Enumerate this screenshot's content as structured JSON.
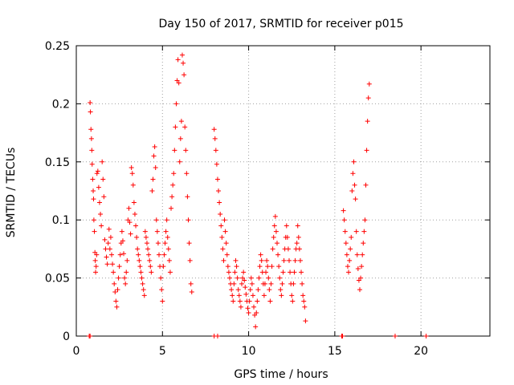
{
  "chart_data": {
    "type": "scatter",
    "title": "Day 150 of 2017, SRMTID for receiver p015",
    "xlabel": "GPS time / hours",
    "ylabel": "SRMTID / TECUs",
    "xlim": [
      0,
      24
    ],
    "ylim": [
      0,
      0.25
    ],
    "xticks": [
      0,
      5,
      10,
      15,
      20
    ],
    "xtick_labels": [
      "0",
      "5",
      "10",
      "15",
      "20"
    ],
    "yticks": [
      0,
      0.05,
      0.1,
      0.15,
      0.2,
      0.25
    ],
    "ytick_labels": [
      "0",
      "0.05",
      "0.1",
      "0.15",
      "0.2",
      "0.25"
    ],
    "grid": true,
    "marker": "plus",
    "color": "#ff0000",
    "series": [
      {
        "name": "SRMTID",
        "points": [
          [
            0.8,
            0.201
          ],
          [
            0.82,
            0.193
          ],
          [
            0.85,
            0.178
          ],
          [
            0.88,
            0.17
          ],
          [
            0.9,
            0.16
          ],
          [
            0.92,
            0.148
          ],
          [
            0.95,
            0.135
          ],
          [
            0.98,
            0.125
          ],
          [
            1.0,
            0.118
          ],
          [
            1.02,
            0.1
          ],
          [
            1.05,
            0.09
          ],
          [
            1.08,
            0.072
          ],
          [
            1.1,
            0.065
          ],
          [
            1.12,
            0.055
          ],
          [
            1.15,
            0.06
          ],
          [
            1.18,
            0.07
          ],
          [
            1.2,
            0.14
          ],
          [
            1.25,
            0.142
          ],
          [
            1.3,
            0.128
          ],
          [
            1.35,
            0.115
          ],
          [
            1.4,
            0.105
          ],
          [
            1.45,
            0.095
          ],
          [
            1.5,
            0.15
          ],
          [
            1.55,
            0.135
          ],
          [
            1.6,
            0.12
          ],
          [
            1.65,
            0.083
          ],
          [
            1.7,
            0.075
          ],
          [
            1.75,
            0.068
          ],
          [
            1.8,
            0.062
          ],
          [
            1.85,
            0.08
          ],
          [
            1.9,
            0.092
          ],
          [
            1.95,
            0.075
          ],
          [
            2.0,
            0.085
          ],
          [
            2.05,
            0.07
          ],
          [
            2.1,
            0.062
          ],
          [
            2.15,
            0.055
          ],
          [
            2.2,
            0.045
          ],
          [
            2.25,
            0.038
          ],
          [
            2.3,
            0.03
          ],
          [
            2.35,
            0.025
          ],
          [
            2.4,
            0.04
          ],
          [
            2.45,
            0.05
          ],
          [
            2.5,
            0.06
          ],
          [
            2.55,
            0.07
          ],
          [
            2.6,
            0.08
          ],
          [
            2.65,
            0.09
          ],
          [
            2.7,
            0.082
          ],
          [
            2.75,
            0.071
          ],
          [
            2.8,
            0.05
          ],
          [
            2.85,
            0.045
          ],
          [
            2.9,
            0.055
          ],
          [
            2.95,
            0.065
          ],
          [
            3.0,
            0.1
          ],
          [
            3.05,
            0.11
          ],
          [
            3.1,
            0.098
          ],
          [
            3.15,
            0.088
          ],
          [
            3.2,
            0.145
          ],
          [
            3.25,
            0.14
          ],
          [
            3.3,
            0.13
          ],
          [
            3.35,
            0.115
          ],
          [
            3.4,
            0.105
          ],
          [
            3.45,
            0.095
          ],
          [
            3.5,
            0.085
          ],
          [
            3.55,
            0.075
          ],
          [
            3.6,
            0.07
          ],
          [
            3.65,
            0.065
          ],
          [
            3.7,
            0.06
          ],
          [
            3.75,
            0.055
          ],
          [
            3.8,
            0.05
          ],
          [
            3.85,
            0.045
          ],
          [
            3.9,
            0.04
          ],
          [
            3.95,
            0.035
          ],
          [
            4.0,
            0.09
          ],
          [
            4.05,
            0.085
          ],
          [
            4.1,
            0.08
          ],
          [
            4.15,
            0.075
          ],
          [
            4.2,
            0.07
          ],
          [
            4.25,
            0.065
          ],
          [
            4.3,
            0.06
          ],
          [
            4.35,
            0.055
          ],
          [
            4.4,
            0.125
          ],
          [
            4.45,
            0.135
          ],
          [
            4.5,
            0.155
          ],
          [
            4.55,
            0.163
          ],
          [
            4.6,
            0.145
          ],
          [
            4.65,
            0.1
          ],
          [
            4.7,
            0.09
          ],
          [
            4.75,
            0.08
          ],
          [
            4.8,
            0.07
          ],
          [
            4.85,
            0.06
          ],
          [
            4.9,
            0.05
          ],
          [
            4.95,
            0.04
          ],
          [
            5.0,
            0.03
          ],
          [
            5.05,
            0.06
          ],
          [
            5.1,
            0.07
          ],
          [
            5.15,
            0.08
          ],
          [
            5.2,
            0.09
          ],
          [
            5.25,
            0.1
          ],
          [
            5.3,
            0.085
          ],
          [
            5.35,
            0.075
          ],
          [
            5.4,
            0.065
          ],
          [
            5.45,
            0.055
          ],
          [
            5.5,
            0.11
          ],
          [
            5.55,
            0.12
          ],
          [
            5.6,
            0.13
          ],
          [
            5.65,
            0.14
          ],
          [
            5.7,
            0.16
          ],
          [
            5.75,
            0.18
          ],
          [
            5.8,
            0.2
          ],
          [
            5.85,
            0.22
          ],
          [
            5.9,
            0.238
          ],
          [
            5.95,
            0.218
          ],
          [
            6.0,
            0.15
          ],
          [
            6.05,
            0.17
          ],
          [
            6.1,
            0.185
          ],
          [
            6.15,
            0.242
          ],
          [
            6.2,
            0.235
          ],
          [
            6.25,
            0.225
          ],
          [
            6.3,
            0.18
          ],
          [
            6.35,
            0.16
          ],
          [
            6.4,
            0.14
          ],
          [
            6.45,
            0.12
          ],
          [
            6.5,
            0.1
          ],
          [
            6.55,
            0.08
          ],
          [
            6.6,
            0.065
          ],
          [
            6.65,
            0.045
          ],
          [
            6.7,
            0.038
          ],
          [
            8.0,
            0.178
          ],
          [
            8.05,
            0.17
          ],
          [
            8.1,
            0.16
          ],
          [
            8.15,
            0.148
          ],
          [
            8.2,
            0.135
          ],
          [
            8.25,
            0.125
          ],
          [
            8.3,
            0.115
          ],
          [
            8.35,
            0.105
          ],
          [
            8.4,
            0.095
          ],
          [
            8.45,
            0.085
          ],
          [
            8.5,
            0.075
          ],
          [
            8.55,
            0.065
          ],
          [
            8.6,
            0.1
          ],
          [
            8.65,
            0.09
          ],
          [
            8.7,
            0.08
          ],
          [
            8.75,
            0.07
          ],
          [
            8.8,
            0.06
          ],
          [
            8.85,
            0.055
          ],
          [
            8.9,
            0.05
          ],
          [
            8.95,
            0.045
          ],
          [
            9.0,
            0.04
          ],
          [
            9.05,
            0.035
          ],
          [
            9.1,
            0.03
          ],
          [
            9.15,
            0.045
          ],
          [
            9.2,
            0.055
          ],
          [
            9.25,
            0.065
          ],
          [
            9.3,
            0.06
          ],
          [
            9.35,
            0.05
          ],
          [
            9.4,
            0.04
          ],
          [
            9.45,
            0.035
          ],
          [
            9.5,
            0.03
          ],
          [
            9.55,
            0.025
          ],
          [
            9.6,
            0.045
          ],
          [
            9.65,
            0.05
          ],
          [
            9.7,
            0.055
          ],
          [
            9.75,
            0.048
          ],
          [
            9.8,
            0.042
          ],
          [
            9.85,
            0.036
          ],
          [
            9.9,
            0.03
          ],
          [
            9.95,
            0.024
          ],
          [
            10.0,
            0.02
          ],
          [
            10.05,
            0.03
          ],
          [
            10.1,
            0.04
          ],
          [
            10.15,
            0.05
          ],
          [
            10.2,
            0.045
          ],
          [
            10.25,
            0.035
          ],
          [
            10.3,
            0.025
          ],
          [
            10.35,
            0.018
          ],
          [
            10.4,
            0.008
          ],
          [
            10.45,
            0.02
          ],
          [
            10.5,
            0.03
          ],
          [
            10.55,
            0.04
          ],
          [
            10.6,
            0.05
          ],
          [
            10.65,
            0.06
          ],
          [
            10.7,
            0.07
          ],
          [
            10.75,
            0.065
          ],
          [
            10.8,
            0.055
          ],
          [
            10.85,
            0.045
          ],
          [
            10.9,
            0.035
          ],
          [
            10.95,
            0.045
          ],
          [
            11.0,
            0.055
          ],
          [
            11.05,
            0.065
          ],
          [
            11.1,
            0.06
          ],
          [
            11.15,
            0.05
          ],
          [
            11.2,
            0.04
          ],
          [
            11.25,
            0.03
          ],
          [
            11.3,
            0.045
          ],
          [
            11.35,
            0.06
          ],
          [
            11.4,
            0.075
          ],
          [
            11.45,
            0.085
          ],
          [
            11.5,
            0.095
          ],
          [
            11.55,
            0.103
          ],
          [
            11.6,
            0.09
          ],
          [
            11.65,
            0.08
          ],
          [
            11.7,
            0.07
          ],
          [
            11.75,
            0.06
          ],
          [
            11.8,
            0.05
          ],
          [
            11.85,
            0.04
          ],
          [
            11.9,
            0.035
          ],
          [
            11.95,
            0.045
          ],
          [
            12.0,
            0.055
          ],
          [
            12.05,
            0.065
          ],
          [
            12.1,
            0.075
          ],
          [
            12.15,
            0.085
          ],
          [
            12.2,
            0.095
          ],
          [
            12.25,
            0.085
          ],
          [
            12.3,
            0.075
          ],
          [
            12.35,
            0.065
          ],
          [
            12.4,
            0.055
          ],
          [
            12.45,
            0.045
          ],
          [
            12.5,
            0.035
          ],
          [
            12.55,
            0.03
          ],
          [
            12.6,
            0.045
          ],
          [
            12.65,
            0.055
          ],
          [
            12.7,
            0.065
          ],
          [
            12.75,
            0.075
          ],
          [
            12.8,
            0.08
          ],
          [
            12.85,
            0.095
          ],
          [
            12.9,
            0.085
          ],
          [
            12.95,
            0.075
          ],
          [
            13.0,
            0.065
          ],
          [
            13.05,
            0.055
          ],
          [
            13.1,
            0.045
          ],
          [
            13.15,
            0.035
          ],
          [
            13.2,
            0.03
          ],
          [
            13.25,
            0.025
          ],
          [
            13.3,
            0.013
          ],
          [
            15.5,
            0.108
          ],
          [
            15.55,
            0.1
          ],
          [
            15.6,
            0.09
          ],
          [
            15.65,
            0.08
          ],
          [
            15.7,
            0.07
          ],
          [
            15.75,
            0.06
          ],
          [
            15.8,
            0.055
          ],
          [
            15.85,
            0.065
          ],
          [
            15.9,
            0.075
          ],
          [
            15.95,
            0.085
          ],
          [
            16.0,
            0.125
          ],
          [
            16.05,
            0.14
          ],
          [
            16.1,
            0.15
          ],
          [
            16.15,
            0.13
          ],
          [
            16.2,
            0.118
          ],
          [
            16.25,
            0.09
          ],
          [
            16.3,
            0.07
          ],
          [
            16.35,
            0.058
          ],
          [
            16.4,
            0.048
          ],
          [
            16.45,
            0.04
          ],
          [
            16.5,
            0.05
          ],
          [
            16.55,
            0.06
          ],
          [
            16.6,
            0.07
          ],
          [
            16.65,
            0.08
          ],
          [
            16.7,
            0.09
          ],
          [
            16.75,
            0.1
          ],
          [
            16.8,
            0.13
          ],
          [
            16.85,
            0.16
          ],
          [
            16.9,
            0.185
          ],
          [
            16.95,
            0.205
          ],
          [
            17.0,
            0.217
          ],
          [
            0.75,
            0.0
          ],
          [
            0.8,
            0.0
          ],
          [
            8.0,
            0.0
          ],
          [
            8.2,
            0.0
          ],
          [
            15.4,
            0.0
          ],
          [
            15.45,
            0.0
          ],
          [
            18.5,
            0.0
          ],
          [
            20.3,
            0.0
          ]
        ]
      }
    ]
  }
}
